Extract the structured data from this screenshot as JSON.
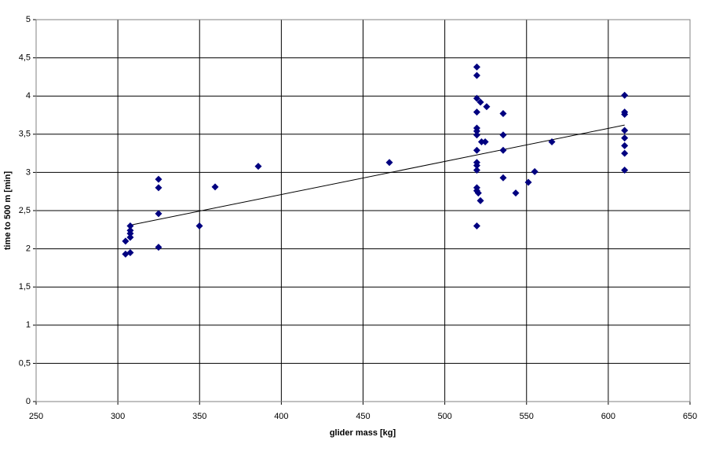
{
  "chart_data": {
    "type": "scatter",
    "x_label": "glider mass [kg]",
    "y_label": "time to 500 m [min]",
    "x": [
      304.7,
      307.6,
      304.7,
      307.6,
      307.6,
      307.6,
      307.6,
      324.9,
      324.9,
      324.9,
      324.9,
      349.9,
      359.5,
      385.9,
      466.1,
      519.6,
      519.6,
      519.6,
      521.8,
      519.6,
      519.6,
      519.6,
      519.6,
      524.7,
      519.6,
      519.6,
      519.6,
      519.6,
      519.6,
      519.6,
      520.5,
      521.8,
      519.6,
      525.6,
      522.5,
      535.7,
      535.7,
      535.7,
      535.7,
      543.4,
      551.1,
      555.0,
      565.5,
      610,
      610,
      610,
      610,
      610,
      610,
      610,
      610
    ],
    "y": [
      1.93,
      1.95,
      2.1,
      2.15,
      2.2,
      2.24,
      2.3,
      2.02,
      2.46,
      2.8,
      2.91,
      2.3,
      2.81,
      3.08,
      3.13,
      4.38,
      4.27,
      3.97,
      3.92,
      3.79,
      3.58,
      3.54,
      3.49,
      3.4,
      3.29,
      3.13,
      3.09,
      3.03,
      2.8,
      2.76,
      2.73,
      2.63,
      2.3,
      3.86,
      3.4,
      3.77,
      3.49,
      3.29,
      2.93,
      2.73,
      2.87,
      3.01,
      3.4,
      4.01,
      3.79,
      3.76,
      3.55,
      3.45,
      3.35,
      3.25,
      3.03
    ],
    "color": "#000080",
    "trendline": {
      "x": [
        307.6,
        610
      ],
      "y": [
        2.31,
        3.62
      ],
      "color": "#000000"
    },
    "xlim": [
      250,
      650
    ],
    "xticks": [
      250,
      300,
      350,
      400,
      450,
      500,
      550,
      600,
      650
    ],
    "ylim": [
      0,
      5
    ],
    "yticks": [
      0,
      {
        "value": 0.5,
        "label": "0,5"
      },
      1,
      {
        "value": 1.5,
        "label": "1,5"
      },
      2,
      {
        "value": 2.5,
        "label": "2,5"
      },
      3,
      {
        "value": 3.5,
        "label": "3,5"
      },
      4,
      {
        "value": 4.5,
        "label": "4,5"
      },
      5
    ],
    "grid": true
  }
}
